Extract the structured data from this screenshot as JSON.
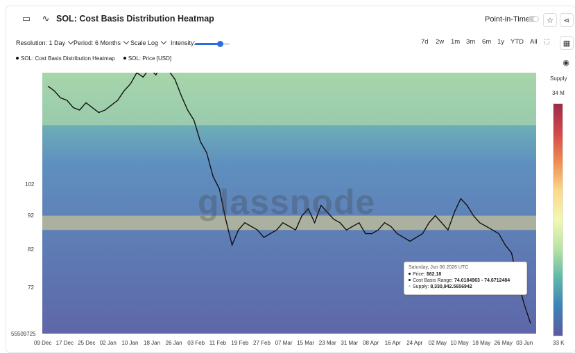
{
  "header": {
    "title": "SOL: Cost Basis Distribution Heatmap",
    "point_in_time_label": "Point-in-Time"
  },
  "toolbar": {
    "resolution": "Resolution: 1 Day",
    "period": "Period: 6 Months",
    "scale": "Scale Log",
    "intensity": "Intensity:",
    "intensity_level": 0.72,
    "ranges": [
      "7d",
      "2w",
      "1m",
      "3m",
      "6m",
      "1y",
      "YTD",
      "All"
    ]
  },
  "tooltip": {
    "date": "Saturday, Jun 06 2026 UTC",
    "price_label": "Price:",
    "price_value": "$62.18",
    "cost_basis_label": "Cost Basis Range:",
    "cost_basis_value": "74.0184963 - 74.6712484",
    "supply_label": "Supply:",
    "supply_value": "8,330,942.5656942"
  },
  "colorbar": {
    "title": "Supply",
    "max_label": "34 M",
    "min_label": "33 K",
    "colors": [
      "#9b2c4a",
      "#d1484c",
      "#f08c50",
      "#fbd98a",
      "#f3f7b4",
      "#b8e3a4",
      "#5fb8a8",
      "#3b82b8",
      "#5d5aa0"
    ]
  },
  "watermark": "glassnode",
  "chart_data": {
    "type": "heatmap",
    "title": "SOL: Cost Basis Distribution Heatmap",
    "xlabel": "",
    "ylabel": "",
    "legend": [
      "SOL: Cost Basis Distribution Heatmap",
      "SOL: Price [USD]"
    ],
    "legend_position": "top-left",
    "y_scale": "log",
    "y_ticks": [
      "102",
      "92",
      "82",
      "72",
      "55509725"
    ],
    "x_ticks": [
      "09 Dec",
      "17 Dec",
      "25 Dec",
      "02 Jan",
      "10 Jan",
      "18 Jan",
      "26 Jan",
      "03 Feb",
      "11 Feb",
      "19 Feb",
      "27 Feb",
      "07 Mar",
      "15 Mar",
      "23 Mar",
      "31 Mar",
      "08 Apr",
      "16 Apr",
      "24 Apr",
      "02 May",
      "10 May",
      "18 May",
      "26 May",
      "03 Jun"
    ],
    "ylim": [
      60,
      140
    ],
    "series": [
      {
        "name": "SOL: Price [USD]",
        "color": "#111111",
        "values": [
          134,
          132,
          129,
          128,
          125,
          124,
          127,
          125,
          123,
          124,
          126,
          128,
          132,
          135,
          140,
          138,
          142,
          139,
          144,
          141,
          137,
          130,
          124,
          120,
          112,
          108,
          100,
          96,
          87,
          80,
          84,
          86,
          85,
          84,
          82,
          83,
          84,
          86,
          85,
          84,
          88,
          90,
          86,
          91,
          89,
          87,
          86,
          84,
          85,
          86,
          83,
          83,
          84,
          86,
          85,
          83,
          82,
          81,
          82,
          83,
          86,
          88,
          86,
          84,
          89,
          93,
          91,
          88,
          86,
          85,
          84,
          83,
          80,
          78,
          71,
          66,
          62
        ]
      }
    ],
    "cost_basis_bands": [
      {
        "price_range": [
          118,
          145
        ],
        "intensity": "mid"
      },
      {
        "price_range": [
          84,
          88
        ],
        "intensity": "high"
      },
      {
        "price_range": [
          60,
          84
        ],
        "intensity": "low"
      }
    ],
    "colorbar_range": [
      "33 K",
      "34 M"
    ]
  }
}
